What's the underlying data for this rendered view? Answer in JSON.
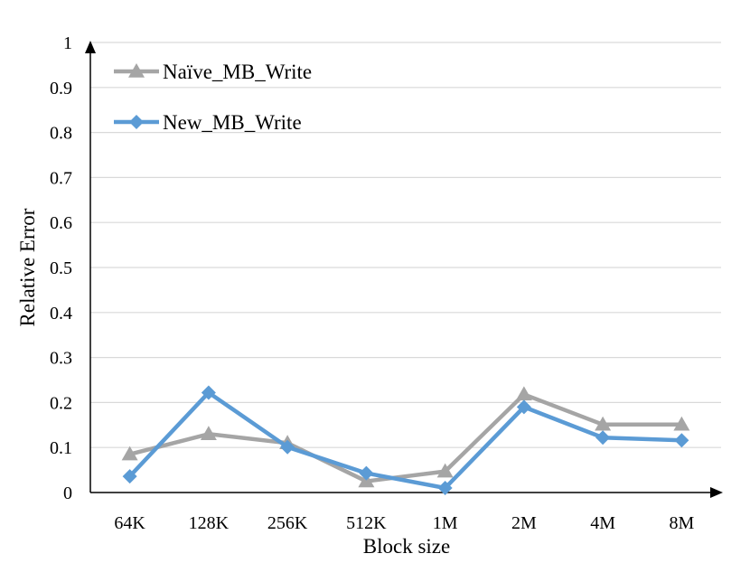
{
  "chart_data": {
    "type": "line",
    "categories": [
      "64K",
      "128K",
      "256K",
      "512K",
      "1M",
      "2M",
      "4M",
      "8M"
    ],
    "series": [
      {
        "name": "Naïve_MB_Write",
        "color": "#a5a5a5",
        "marker": "triangle",
        "values": [
          0.085,
          0.13,
          0.11,
          0.025,
          0.047,
          0.218,
          0.151,
          0.151
        ]
      },
      {
        "name": "New_MB_Write",
        "color": "#5b9bd5",
        "marker": "diamond",
        "values": [
          0.036,
          0.222,
          0.101,
          0.043,
          0.01,
          0.19,
          0.122,
          0.116
        ]
      }
    ],
    "xlabel": "Block size",
    "ylabel": "Relative Error",
    "ylim": [
      0,
      1
    ],
    "yticks": [
      "0",
      "0.1",
      "0.2",
      "0.3",
      "0.4",
      "0.5",
      "0.6",
      "0.7",
      "0.8",
      "0.9",
      "1"
    ],
    "grid": true,
    "legend_position": "top-left"
  }
}
